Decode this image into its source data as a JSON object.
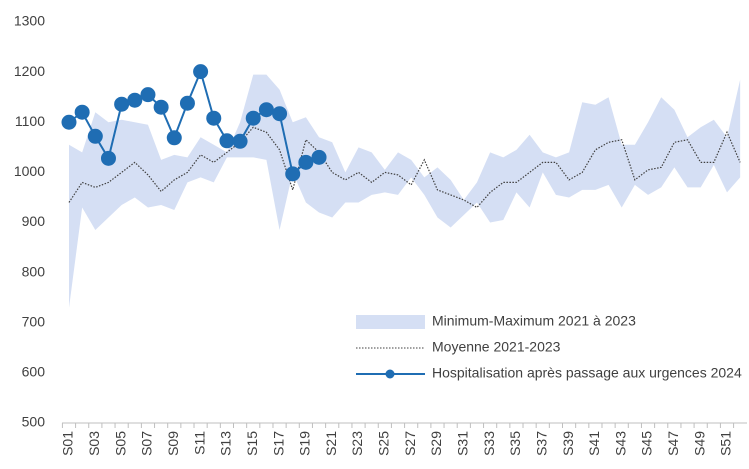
{
  "chart_data": {
    "type": "line",
    "categories": [
      "S01",
      null,
      "S03",
      null,
      "S05",
      null,
      "S07",
      null,
      "S09",
      null,
      "S11",
      null,
      "S13",
      null,
      "S15",
      null,
      "S17",
      null,
      "S19",
      null,
      "S21",
      null,
      "S23",
      null,
      "S25",
      null,
      "S27",
      null,
      "S29",
      null,
      "S31",
      null,
      "S33",
      null,
      "S35",
      null,
      "S37",
      null,
      "S39",
      null,
      "S41",
      null,
      "S43",
      null,
      "S45",
      null,
      "S47",
      null,
      "S49",
      null,
      "S51",
      null
    ],
    "series": [
      {
        "name": "Minimum-Maximum 2021 à 2023",
        "color": "#d5dff4",
        "kind": "band",
        "low": [
          730,
          930,
          885,
          910,
          935,
          950,
          930,
          935,
          925,
          980,
          990,
          980,
          1030,
          1030,
          1030,
          1025,
          885,
          1000,
          940,
          920,
          910,
          940,
          940,
          955,
          960,
          955,
          990,
          955,
          910,
          890,
          915,
          940,
          900,
          905,
          960,
          930,
          1000,
          955,
          950,
          965,
          965,
          975,
          930,
          975,
          955,
          970,
          1010,
          970,
          970,
          1015,
          960,
          990
        ],
        "high": [
          1055,
          1040,
          1120,
          1100,
          1105,
          1100,
          1095,
          1025,
          1035,
          1030,
          1070,
          1055,
          1040,
          1100,
          1195,
          1195,
          1165,
          1100,
          1110,
          1070,
          1060,
          1000,
          1050,
          1040,
          1005,
          1040,
          1025,
          990,
          1010,
          985,
          945,
          980,
          1040,
          1030,
          1045,
          1075,
          1040,
          1030,
          1040,
          1140,
          1135,
          1150,
          1055,
          1055,
          1100,
          1150,
          1125,
          1070,
          1090,
          1105,
          1070,
          1185
        ]
      },
      {
        "name": "Moyenne 2021-2023",
        "color": "#404040",
        "kind": "dotted",
        "values": [
          940,
          980,
          970,
          980,
          1000,
          1020,
          995,
          962,
          985,
          1000,
          1035,
          1020,
          1040,
          1060,
          1090,
          1080,
          1045,
          965,
          1065,
          1040,
          1000,
          985,
          1000,
          980,
          1000,
          995,
          975,
          1025,
          965,
          955,
          945,
          930,
          960,
          980,
          980,
          1000,
          1020,
          1020,
          985,
          1000,
          1045,
          1060,
          1065,
          985,
          1005,
          1010,
          1060,
          1065,
          1020,
          1020,
          1080,
          1020
        ]
      },
      {
        "name": "Hospitalisation après passage aux urgences 2024",
        "color": "#1f6db3",
        "kind": "markers",
        "values": [
          1100,
          1120,
          1072,
          1028,
          1136,
          1144,
          1155,
          1130,
          1069,
          1138,
          1201,
          1108,
          1063,
          1062,
          1108,
          1125,
          1117,
          997,
          1020,
          1030,
          null,
          null,
          null,
          null,
          null,
          null,
          null,
          null,
          null,
          null,
          null,
          null,
          null,
          null,
          null,
          null,
          null,
          null,
          null,
          null,
          null,
          null,
          null,
          null,
          null,
          null,
          null,
          null,
          null,
          null,
          null,
          null
        ]
      }
    ],
    "ylim": [
      500,
      1300
    ],
    "yticks": [
      500,
      600,
      700,
      800,
      900,
      1000,
      1100,
      1200,
      1300
    ]
  }
}
